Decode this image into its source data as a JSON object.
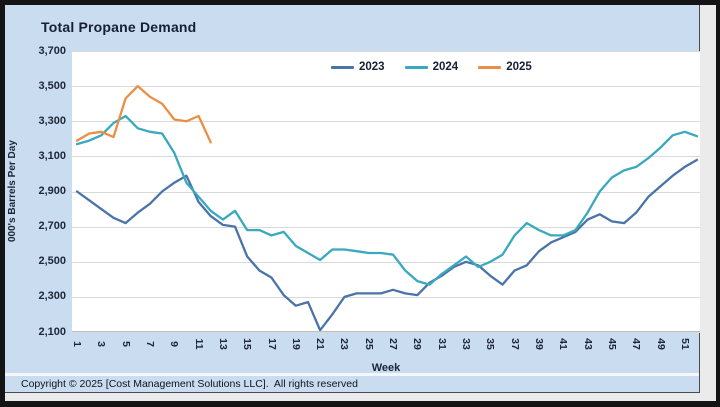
{
  "chart": {
    "title": "Total Propane Demand",
    "x_axis_title": "Week",
    "y_axis_title": "000's Barrels Per Day",
    "copyright": "Copyright © 2025 [Cost Management Solutions LLC].  All rights reserved"
  },
  "colors": {
    "frame": "#141414",
    "chart_background": "#c9dcf0",
    "plot_background": "#ffffff",
    "gridline": "#d9d9d9",
    "text": "#1d2638",
    "series_2023": "#4a73a8",
    "series_2024": "#3aa8bd",
    "series_2025": "#ec8f44"
  },
  "chart_data": {
    "type": "line",
    "title": "Total Propane Demand",
    "xlabel": "Week",
    "ylabel": "000's Barrels Per Day",
    "xlim": [
      1,
      52
    ],
    "ylim": [
      2100,
      3700
    ],
    "y_tick_step": 200,
    "y_tick_labels": [
      "3,700",
      "3,500",
      "3,300",
      "3,100",
      "2,900",
      "2,700",
      "2,500",
      "2,300",
      "2,100"
    ],
    "x_tick_labels": [
      "1",
      "3",
      "5",
      "7",
      "9",
      "11",
      "13",
      "15",
      "17",
      "19",
      "21",
      "23",
      "25",
      "27",
      "29",
      "31",
      "33",
      "35",
      "37",
      "39",
      "41",
      "43",
      "45",
      "47",
      "49",
      "51"
    ],
    "grid": true,
    "legend_position": "top-inside",
    "x_unit": "week-of-year",
    "series": [
      {
        "name": "2023",
        "color": "#4a73a8",
        "values": [
          2900,
          2850,
          2800,
          2750,
          2720,
          2780,
          2830,
          2900,
          2950,
          2990,
          2840,
          2760,
          2710,
          2700,
          2530,
          2450,
          2410,
          2310,
          2250,
          2270,
          2110,
          2200,
          2300,
          2320,
          2320,
          2320,
          2340,
          2320,
          2310,
          2380,
          2420,
          2470,
          2500,
          2480,
          2420,
          2370,
          2450,
          2480,
          2560,
          2610,
          2640,
          2670,
          2740,
          2770,
          2730,
          2720,
          2780,
          2870,
          2930,
          2990,
          3040,
          3080
        ]
      },
      {
        "name": "2024",
        "color": "#3aa8bd",
        "values": [
          3170,
          3190,
          3220,
          3290,
          3330,
          3260,
          3240,
          3230,
          3120,
          2950,
          2870,
          2790,
          2740,
          2790,
          2680,
          2680,
          2650,
          2670,
          2590,
          2550,
          2510,
          2570,
          2570,
          2560,
          2550,
          2550,
          2540,
          2450,
          2390,
          2370,
          2430,
          2480,
          2530,
          2470,
          2500,
          2540,
          2650,
          2720,
          2680,
          2650,
          2650,
          2680,
          2780,
          2900,
          2980,
          3020,
          3040,
          3090,
          3150,
          3220,
          3240,
          3215
        ]
      },
      {
        "name": "2025",
        "color": "#ec8f44",
        "values": [
          3190,
          3230,
          3240,
          3210,
          3430,
          3500,
          3440,
          3400,
          3310,
          3300,
          3330,
          3180
        ]
      }
    ]
  }
}
